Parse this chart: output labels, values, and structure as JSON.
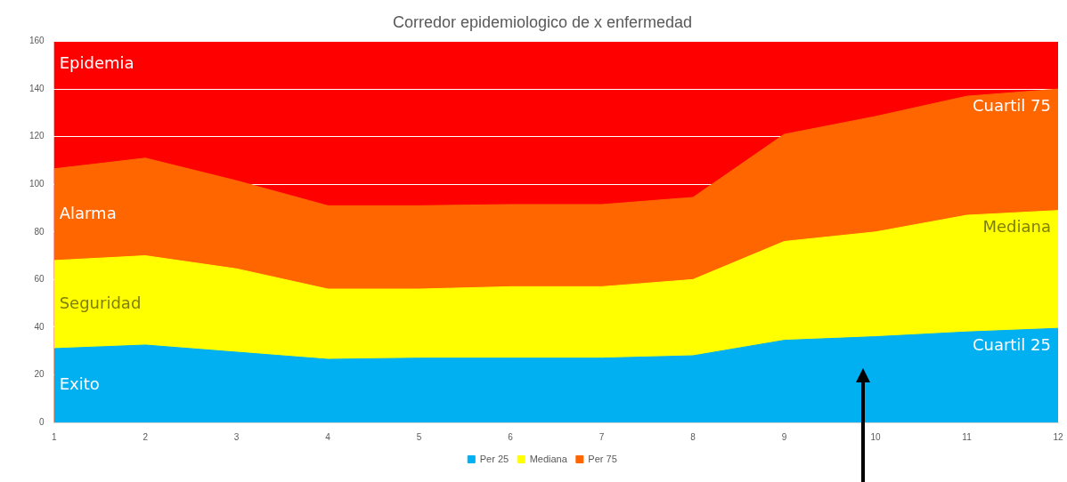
{
  "chart_data": {
    "type": "area",
    "title": "Corredor epidemiologico de x enfermedad",
    "x": [
      1,
      2,
      3,
      4,
      5,
      6,
      7,
      8,
      9,
      10,
      11,
      12
    ],
    "series": [
      {
        "name": "Per 25",
        "color": "#00b0f0",
        "values": [
          31,
          32.5,
          29.5,
          26.5,
          27,
          27,
          27,
          28,
          34.5,
          36,
          38,
          39.5
        ]
      },
      {
        "name": "Mediana",
        "color": "#ffff00",
        "values": [
          68,
          70,
          64.5,
          56,
          56,
          57,
          57,
          60,
          76,
          80,
          87,
          89
        ]
      },
      {
        "name": "Per 75",
        "color": "#ff6600",
        "values": [
          106.5,
          111,
          101.5,
          91,
          91,
          91.5,
          91.5,
          94.5,
          121,
          128.5,
          137,
          140
        ]
      }
    ],
    "bands": [
      {
        "axis": "y",
        "from": 0,
        "to": 160,
        "color": "#ff0000"
      }
    ],
    "xlim": [
      1,
      12
    ],
    "xticks": [
      1,
      2,
      3,
      4,
      5,
      6,
      7,
      8,
      9,
      10,
      11,
      12
    ],
    "ylim": [
      0,
      160
    ],
    "yticks": [
      0,
      20,
      40,
      60,
      80,
      100,
      120,
      140,
      160
    ],
    "grid": "y",
    "legend": "bottom",
    "marker": "none",
    "annotations": [
      "Epidemia",
      "Alarma",
      "Seguridad",
      "Exito",
      "Cuartil 75",
      "Mediana",
      "Cuartil 25"
    ]
  }
}
